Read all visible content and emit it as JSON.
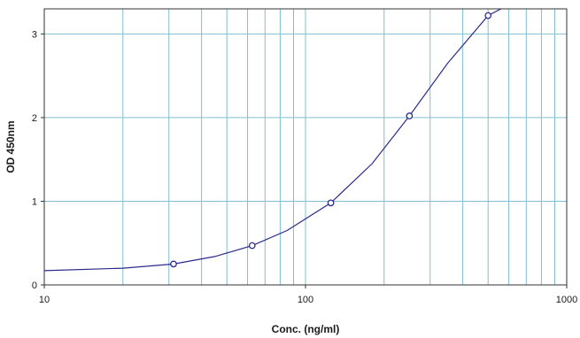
{
  "chart_data": {
    "type": "line",
    "title": "",
    "xlabel": "Conc. (ng/ml)",
    "ylabel": "OD 450nm",
    "x_scale": "log",
    "xlim": [
      10,
      1000
    ],
    "ylim": [
      0,
      3.3
    ],
    "x_ticks": [
      10,
      100,
      1000
    ],
    "x_tick_labels": [
      "10",
      "100",
      "1000"
    ],
    "y_ticks": [
      0,
      1,
      2,
      3
    ],
    "y_tick_labels": [
      "0",
      "1",
      "2",
      "3"
    ],
    "grid": true,
    "legend": "none",
    "series": [
      {
        "kind": "points",
        "marker": "circle",
        "color": "#2b2b8c",
        "x": [
          31.25,
          62.5,
          125,
          250,
          500
        ],
        "y": [
          0.25,
          0.47,
          0.98,
          2.02,
          3.22
        ]
      },
      {
        "kind": "fitted-curve",
        "color": "#2b2b8c",
        "x": [
          10,
          20,
          31.25,
          45,
          62.5,
          85,
          125,
          180,
          250,
          350,
          500,
          560
        ],
        "y": [
          0.17,
          0.2,
          0.25,
          0.34,
          0.47,
          0.65,
          0.98,
          1.45,
          2.02,
          2.65,
          3.22,
          3.33
        ]
      }
    ],
    "colors": {
      "grid": "#7fbfcf",
      "axes": "#333333",
      "series": "#2b2b8c"
    }
  }
}
